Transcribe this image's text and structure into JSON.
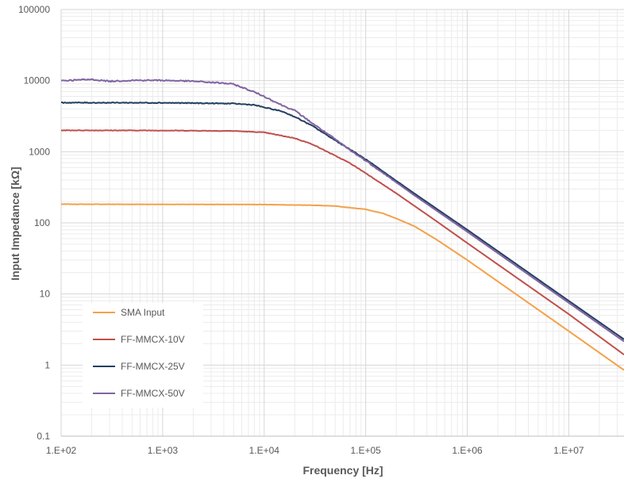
{
  "chart_data": {
    "type": "line",
    "title": "",
    "xlabel": "Frequency [Hz]",
    "ylabel": "Input Impedance [kΩ]",
    "xscale": "log",
    "yscale": "log",
    "xlim": [
      100,
      35000000
    ],
    "ylim": [
      0.1,
      100000
    ],
    "grid": true,
    "legend_position": "bottom-left",
    "x_tick_labels": [
      "1.E+02",
      "1.E+03",
      "1.E+04",
      "1.E+05",
      "1.E+06",
      "1.E+07"
    ],
    "y_tick_labels": [
      "0.1",
      "1",
      "10",
      "100",
      "1000",
      "10000",
      "100000"
    ],
    "series": [
      {
        "name": "SMA Input",
        "color": "#f4a14a",
        "x": [
          100,
          1000,
          10000,
          30000,
          50000,
          100000,
          150000,
          200000,
          300000,
          500000,
          1000000,
          3000000,
          10000000,
          35000000
        ],
        "y": [
          183,
          182,
          181,
          177,
          172,
          155,
          135,
          115,
          90,
          58,
          30,
          10,
          3.0,
          0.85
        ]
      },
      {
        "name": "FF-MMCX-10V",
        "color": "#c0504d",
        "x": [
          100,
          1000,
          5000,
          10000,
          20000,
          30000,
          50000,
          70000,
          100000,
          200000,
          500000,
          1000000,
          10000000,
          35000000
        ],
        "y": [
          2000,
          1990,
          1960,
          1870,
          1550,
          1270,
          880,
          690,
          500,
          260,
          105,
          52,
          5.2,
          1.4
        ]
      },
      {
        "name": "FF-MMCX-25V",
        "color": "#243f60",
        "x": [
          100,
          1000,
          5000,
          8000,
          10000,
          15000,
          20000,
          30000,
          50000,
          70000,
          100000,
          300000,
          1000000,
          10000000,
          35000000
        ],
        "y": [
          4900,
          4880,
          4750,
          4550,
          4200,
          3700,
          3100,
          2300,
          1450,
          1080,
          780,
          260,
          80,
          8,
          2.3
        ]
      },
      {
        "name": "FF-MMCX-50V",
        "color": "#8064a2",
        "x": [
          100,
          200,
          300,
          500,
          1000,
          2000,
          4000,
          5000,
          8000,
          10000,
          15000,
          20000,
          30000,
          50000,
          70000,
          100000,
          300000,
          1000000,
          10000000,
          35000000
        ],
        "y": [
          10000,
          10400,
          9800,
          10100,
          10100,
          9800,
          9200,
          8900,
          6900,
          6000,
          4500,
          3800,
          2500,
          1500,
          1050,
          750,
          245,
          75,
          7.5,
          2.15
        ]
      }
    ]
  }
}
